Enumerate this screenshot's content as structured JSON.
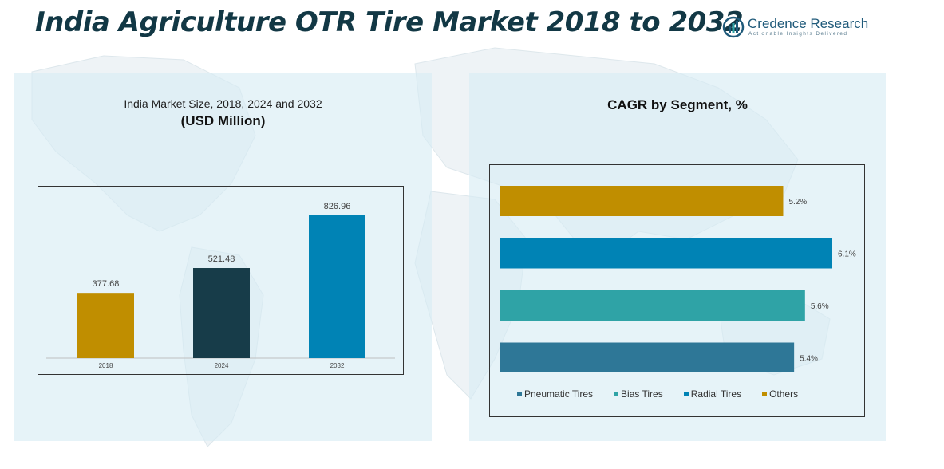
{
  "header": {
    "title": "India Agriculture OTR Tire Market 2018 to 2032",
    "brand_name": "Credence Research",
    "brand_tagline": "Actionable Insights Delivered"
  },
  "left_panel": {
    "subtitle": "India Market Size, 2018, 2024 and 2032",
    "unit": "(USD Million)"
  },
  "right_panel": {
    "title": "CAGR by Segment, %"
  },
  "chart_data": [
    {
      "type": "bar",
      "title": "India Market Size, 2018, 2024 and 2032",
      "ylabel": "(USD Million)",
      "categories": [
        "2018",
        "2024",
        "2032"
      ],
      "values": [
        377.68,
        521.48,
        826.96
      ],
      "value_labels": [
        "377.68",
        "521.48",
        "826.96"
      ],
      "colors": [
        "#c08e00",
        "#173c49",
        "#0083b5"
      ],
      "ylim": [
        0,
        900
      ],
      "grid": false
    },
    {
      "type": "bar",
      "orientation": "horizontal",
      "title": "CAGR by Segment, %",
      "categories": [
        "Others",
        "Radial Tires",
        "Bias Tires",
        "Pneumatic Tires"
      ],
      "values": [
        5.2,
        6.1,
        5.6,
        5.4
      ],
      "value_labels": [
        "5.2%",
        "6.1%",
        "5.6%",
        "5.4%"
      ],
      "colors": [
        "#c08e00",
        "#0083b5",
        "#2fa3a6",
        "#2e7797"
      ],
      "xlim": [
        0,
        6.1
      ],
      "grid": false,
      "legend": {
        "position": "bottom",
        "entries": [
          {
            "label": "Pneumatic Tires",
            "color": "#2e7797"
          },
          {
            "label": "Bias Tires",
            "color": "#2fa3a6"
          },
          {
            "label": "Radial Tires",
            "color": "#0083b5"
          },
          {
            "label": "Others",
            "color": "#c08e00"
          }
        ]
      }
    }
  ]
}
